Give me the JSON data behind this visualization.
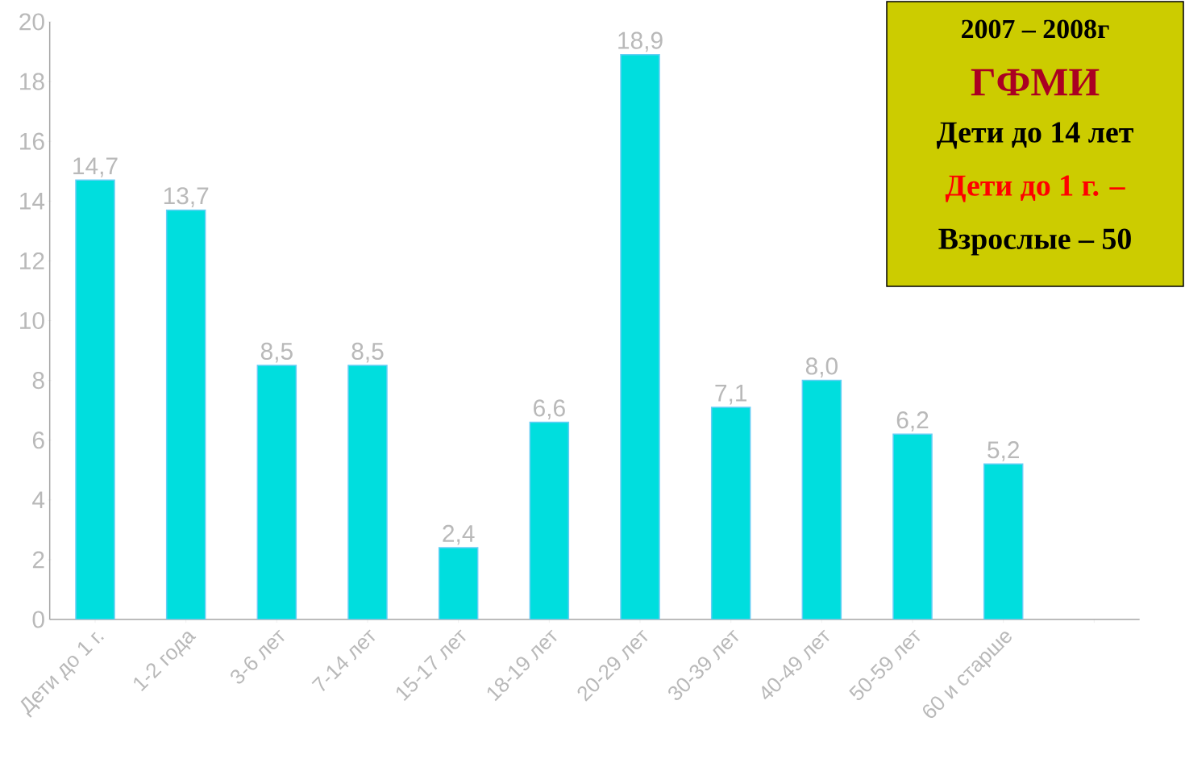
{
  "chart_data": {
    "type": "bar",
    "categories": [
      "Дети до 1 г.",
      "1-2 года",
      "3-6 лет",
      "7-14 лет",
      "15-17 лет",
      "18-19 лет",
      "20-29 лет",
      "30-39 лет",
      "40-49 лет",
      "50-59 лет",
      "60 и старше",
      null
    ],
    "values": [
      14.7,
      13.7,
      8.5,
      8.5,
      2.4,
      6.6,
      18.9,
      7.1,
      8.0,
      6.2,
      5.2,
      null
    ],
    "value_labels": [
      "14,7",
      "13,7",
      "8,5",
      "8,5",
      "2,4",
      "6,6",
      "18,9",
      "7,1",
      "8,0",
      "6,2",
      "5,2",
      null
    ],
    "color": "#00dede",
    "ylim": [
      0,
      20
    ],
    "yticks": [
      0,
      2,
      4,
      6,
      8,
      10,
      12,
      14,
      16,
      18,
      20
    ],
    "grid": false,
    "annotations": [
      "2007 – 2008г",
      "ГФМИ",
      "Дети до 14 лет",
      "Дети до 1 г. –",
      "Взрослые – 50"
    ]
  }
}
